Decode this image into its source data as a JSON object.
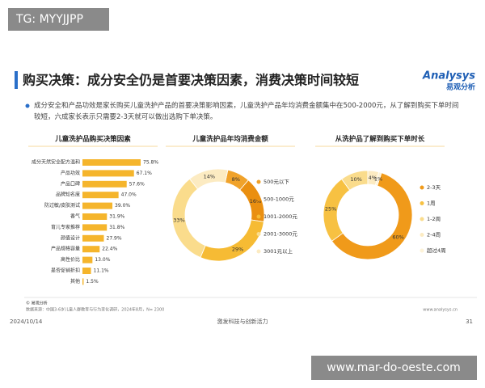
{
  "page": {
    "watermark": "TG: MYYJJPP",
    "title": "购买决策：成分安全仍是首要决策因素，消费决策时间较短",
    "logo_brand": "Analysys",
    "logo_cn": "易观分析",
    "summary": "成分安全和产品功效是家长购买儿童洗护产品的首要决策影响因素，儿童洗护产品年均消费金额集中在500-2000元，从了解到购买下单时间较短，六成家长表示只需要2-3天就可以做出选购下单决策。",
    "copyright": "© 易观分析",
    "source": "数据来源：中国3-6岁儿童人群教育与行为变化调研，2024年8月，N= 2300",
    "website": "www.analysys.cn",
    "date": "2024/10/14",
    "slogan": "激发科技与创新活力",
    "page_number": "31",
    "footer_watermark": "www.mar-do-oeste.com"
  },
  "chart_data": [
    {
      "type": "bar",
      "title": "儿童洗护品购买决策因素",
      "color": "#f5b52c",
      "categories": [
        "成分天然安全配方温和",
        "产品功效",
        "产品口碑",
        "品牌知名度",
        "防过敏/皮肤测试",
        "香气",
        "育儿专家推荐",
        "颜值设计",
        "产品规格容量",
        "高性价比",
        "是否促销折扣",
        "其他"
      ],
      "values": [
        75.8,
        67.1,
        57.6,
        47.0,
        39.0,
        31.9,
        31.8,
        27.9,
        22.4,
        13.0,
        11.1,
        1.5
      ],
      "value_labels": [
        "75.8%",
        "67.1%",
        "57.6%",
        "47.0%",
        "39.0%",
        "31.9%",
        "31.8%",
        "27.9%",
        "22.4%",
        "13.0%",
        "11.1%",
        "1.5%"
      ]
    },
    {
      "type": "donut",
      "title": "儿童洗护品年均消费金额",
      "categories": [
        "500元以下",
        "500-1000元",
        "1001-2000元",
        "2001-3000元",
        "3001元以上"
      ],
      "values": [
        8,
        16,
        29,
        33,
        14
      ],
      "value_labels": [
        "8%",
        "16%",
        "29%",
        "33%",
        "14%"
      ],
      "colors": [
        "#f0a22a",
        "#ea8f10",
        "#f6bb34",
        "#fadc8c",
        "#fcebc2"
      ]
    },
    {
      "type": "donut",
      "title": "从洗护品了解到购买下单时长",
      "categories": [
        "2-3天",
        "1周",
        "1-2周",
        "2-4周",
        "超过4周"
      ],
      "values": [
        60,
        25,
        10,
        4,
        1
      ],
      "value_labels": [
        "60%",
        "25%",
        "10%",
        "4%",
        "1%"
      ],
      "colors": [
        "#f09a1a",
        "#f7c142",
        "#fadc8c",
        "#fcebc2",
        "#fdf3d8"
      ]
    }
  ]
}
